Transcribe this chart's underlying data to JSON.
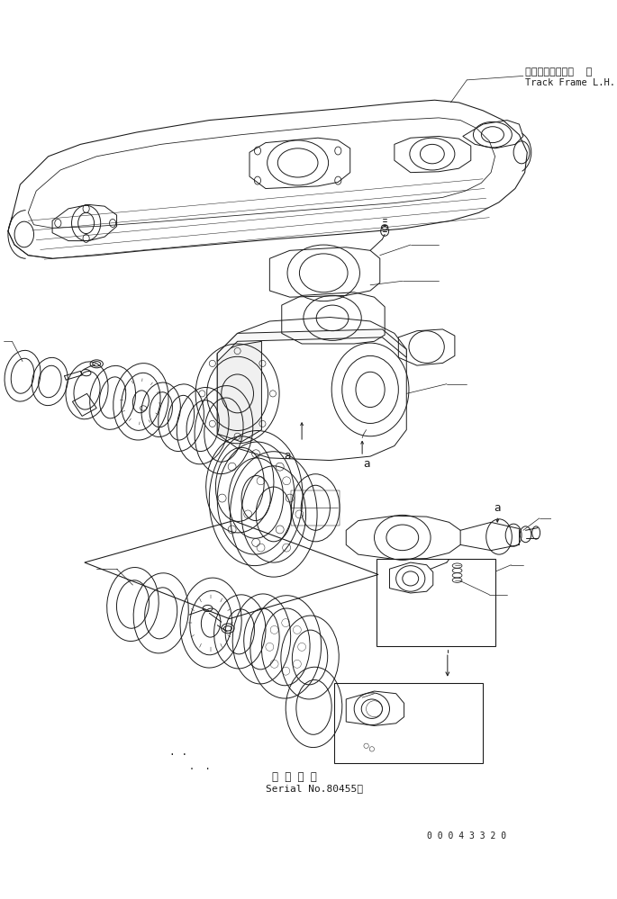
{
  "title_jp": "トラックフレーム  左",
  "title_en": "Track Frame L.H.",
  "serial_label_jp": "適 用 号 機",
  "serial_label_en": "Serial No.80455～",
  "part_number": "0 0 0 4 3 3 2 0",
  "label_a": "a",
  "bg_color": "#ffffff",
  "line_color": "#1a1a1a",
  "fig_width": 6.85,
  "fig_height": 9.99,
  "dpi": 100
}
